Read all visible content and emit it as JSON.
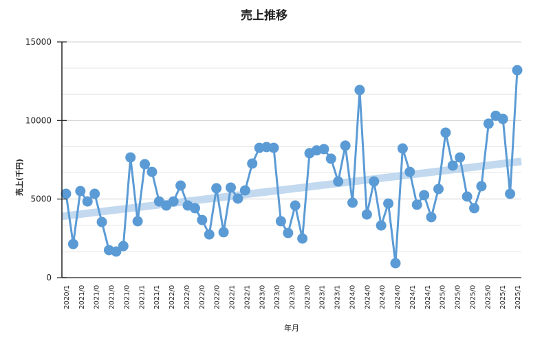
{
  "chart_data": {
    "type": "line",
    "title": "売上推移",
    "xlabel": "年月",
    "ylabel": "売上(千円)",
    "ylim": [
      0,
      15000
    ],
    "yticks": [
      "0",
      "5000",
      "10000",
      "15000"
    ],
    "grid": true,
    "x_tick_labels": [
      "2020/1",
      "2021/0",
      "2021/0",
      "2021/0",
      "2021/0",
      "2021/1",
      "2021/1",
      "2022/0",
      "2022/0",
      "2022/0",
      "2022/0",
      "2022/1",
      "2022/1",
      "2023/0",
      "2023/0",
      "2023/0",
      "2023/0",
      "2023/1",
      "2023/1",
      "2024/0",
      "2024/0",
      "2024/0",
      "2024/0",
      "2024/1",
      "2024/1",
      "2025/0",
      "2025/0",
      "2025/0",
      "2025/0",
      "2025/1",
      "2025/1"
    ],
    "series": [
      {
        "values": [
          5335,
          2140,
          5510,
          4850,
          5335,
          3540,
          1750,
          1660,
          2010,
          7650,
          3590,
          7220,
          6730,
          4850,
          4590,
          4850,
          5860,
          4590,
          4420,
          3670,
          2750,
          5690,
          2890,
          5730,
          5030,
          5550,
          7260,
          8260,
          8310,
          8260,
          3590,
          2840,
          4590,
          2490,
          7920,
          8100,
          8180,
          7570,
          6120,
          8400,
          4770,
          11940,
          4020,
          6120,
          3320,
          4720,
          920,
          8220,
          6730,
          4640,
          5250,
          3850,
          5640,
          9230,
          7130,
          7650,
          5160,
          4420,
          5820,
          9800,
          10300,
          10100,
          5335,
          13200
        ],
        "color": "#5b9bd5"
      }
    ],
    "trendline": {
      "start": 3900,
      "end": 7400,
      "color": "#bcd5ee"
    }
  }
}
